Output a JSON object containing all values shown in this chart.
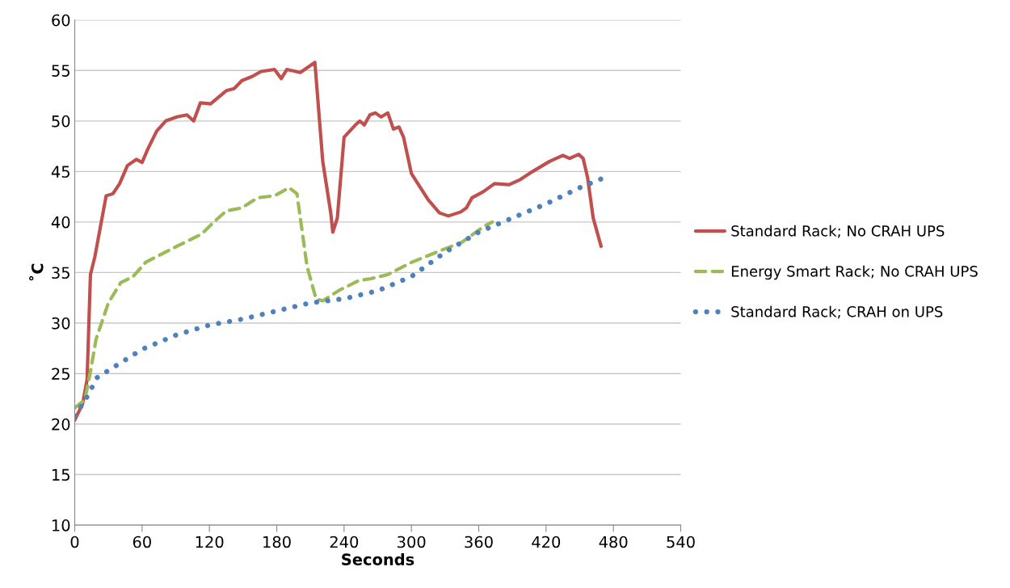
{
  "chart_data": {
    "type": "line",
    "xlabel": "Seconds",
    "ylabel": "˚C",
    "xlim": [
      0,
      540
    ],
    "ylim": [
      10,
      60
    ],
    "xticks": [
      0,
      60,
      120,
      180,
      240,
      300,
      360,
      420,
      480,
      540
    ],
    "yticks": [
      10,
      15,
      20,
      25,
      30,
      35,
      40,
      45,
      50,
      55,
      60
    ],
    "grid": "y",
    "legend": "right",
    "series": [
      {
        "name": "Standard Rack; No CRAH UPS",
        "color": "#c0504d",
        "line_style": "solid",
        "x": [
          0,
          7,
          11,
          14,
          18,
          23,
          28,
          34,
          40,
          47,
          55,
          60,
          65,
          73,
          81,
          91,
          100,
          106,
          112,
          121,
          135,
          142,
          149,
          158,
          166,
          178,
          184,
          189,
          201,
          214,
          221,
          228,
          230,
          234,
          240,
          250,
          254,
          258,
          263,
          268,
          273,
          279,
          284,
          289,
          293,
          300,
          315,
          325,
          333,
          344,
          349,
          354,
          364,
          374,
          387,
          397,
          408,
          423,
          435,
          441,
          449,
          453,
          457,
          462,
          469
        ],
        "values": [
          20.4,
          22,
          24.4,
          34.8,
          36.6,
          39.6,
          42.6,
          42.8,
          43.8,
          45.6,
          46.2,
          45.9,
          47.2,
          49,
          50,
          50.4,
          50.6,
          50,
          51.8,
          51.7,
          53,
          53.2,
          54,
          54.4,
          54.9,
          55.1,
          54.2,
          55.1,
          54.8,
          55.8,
          46,
          41,
          39,
          40.4,
          48.4,
          49.6,
          50,
          49.6,
          50.6,
          50.8,
          50.4,
          50.8,
          49.2,
          49.4,
          48.4,
          44.8,
          42.2,
          40.9,
          40.6,
          41,
          41.4,
          42.4,
          43,
          43.8,
          43.7,
          44.2,
          45,
          46,
          46.6,
          46.3,
          46.7,
          46.3,
          44.4,
          40.4,
          37.6
        ]
      },
      {
        "name": "Energy Smart Rack; No CRAH UPS",
        "color": "#9bbb59",
        "line_style": "dashed",
        "x": [
          0,
          9,
          14,
          19,
          30,
          41,
          52,
          63,
          77,
          91,
          113,
          124,
          135,
          149,
          163,
          178,
          191,
          198,
          207,
          215,
          221,
          235,
          253,
          264,
          279,
          300,
          322,
          345,
          365,
          372
        ],
        "values": [
          21.6,
          22.4,
          25.2,
          28.4,
          32,
          34,
          34.6,
          36,
          36.8,
          37.6,
          38.8,
          40,
          41.1,
          41.4,
          42.4,
          42.6,
          43.4,
          42.8,
          35.6,
          32.4,
          32.2,
          33.2,
          34.2,
          34.4,
          34.8,
          36,
          37,
          38,
          39.6,
          40
        ]
      },
      {
        "name": "Standard Rack; CRAH on UPS",
        "color": "#4f81bd",
        "line_style": "dotted",
        "x": [
          0,
          10,
          20,
          40,
          60,
          90,
          120,
          150,
          180,
          210,
          240,
          270,
          300,
          330,
          360,
          390,
          420,
          450,
          472
        ],
        "values": [
          20.8,
          22.5,
          24.6,
          26,
          27.4,
          28.8,
          29.8,
          30.4,
          31.2,
          32,
          32.4,
          33.2,
          34.6,
          37,
          39,
          40.4,
          41.8,
          43.4,
          44.4
        ]
      }
    ]
  }
}
